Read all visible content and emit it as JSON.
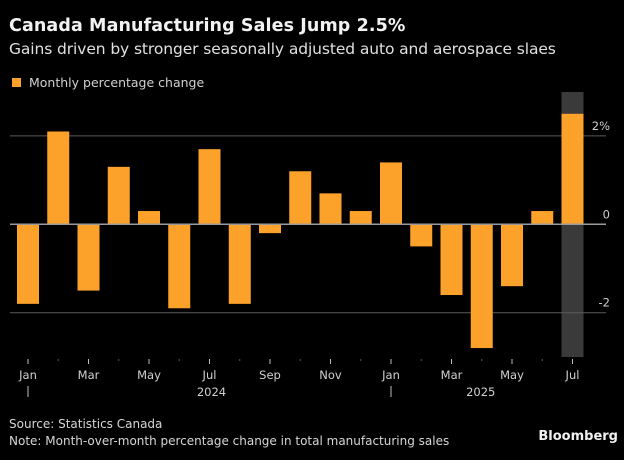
{
  "chart_data": {
    "type": "bar",
    "title": "Canada Manufacturing Sales Jump 2.5%",
    "subtitle": "Gains driven by stronger seasonally adjusted auto and aerospace slaes",
    "legend": [
      {
        "label": "Monthly percentage change",
        "color": "#fca22b"
      }
    ],
    "legend_position": "top-left",
    "categories": [
      "Jan 2024",
      "Feb 2024",
      "Mar 2024",
      "Apr 2024",
      "May 2024",
      "Jun 2024",
      "Jul 2024",
      "Aug 2024",
      "Sep 2024",
      "Oct 2024",
      "Nov 2024",
      "Dec 2024",
      "Jan 2025",
      "Feb 2025",
      "Mar 2025",
      "Apr 2025",
      "May 2025",
      "Jun 2025",
      "Jul 2025"
    ],
    "series": [
      {
        "name": "Monthly percentage change",
        "values": [
          -1.8,
          2.1,
          -1.5,
          1.3,
          0.3,
          -1.9,
          1.7,
          -1.8,
          -0.2,
          1.2,
          0.7,
          0.3,
          1.4,
          -0.5,
          -1.6,
          -2.8,
          -1.4,
          0.3,
          2.5
        ]
      }
    ],
    "highlight_category": "Jul 2025",
    "x_tick_labels": [
      {
        "index": 0,
        "label": "Jan"
      },
      {
        "index": 2,
        "label": "Mar"
      },
      {
        "index": 4,
        "label": "May"
      },
      {
        "index": 6,
        "label": "Jul"
      },
      {
        "index": 8,
        "label": "Sep"
      },
      {
        "index": 10,
        "label": "Nov"
      },
      {
        "index": 12,
        "label": "Jan"
      },
      {
        "index": 14,
        "label": "Mar"
      },
      {
        "index": 16,
        "label": "May"
      },
      {
        "index": 18,
        "label": "Jul"
      }
    ],
    "year_labels": [
      {
        "center_index": 6,
        "label": "2024",
        "divider_index": 0
      },
      {
        "center_index": 15,
        "label": "2025",
        "divider_index": 12
      }
    ],
    "y_ticks": [
      {
        "value": 2,
        "label": "2%"
      },
      {
        "value": 0,
        "label": "0"
      },
      {
        "value": -2,
        "label": "-2"
      }
    ],
    "ylim": [
      -3,
      3
    ],
    "y_axis_side": "right",
    "grid": true,
    "xlabel": "",
    "ylabel": ""
  },
  "footer": {
    "source": "Source: Statistics Canada",
    "note": "Note: Month-over-month percentage change in total manufacturing sales",
    "brand": "Bloomberg"
  },
  "colors": {
    "bar": "#fca22b",
    "highlight_band": "#3a3a3a",
    "gridline": "#5a5a5a",
    "zero_line": "#9a9a9a",
    "background": "#000000"
  }
}
